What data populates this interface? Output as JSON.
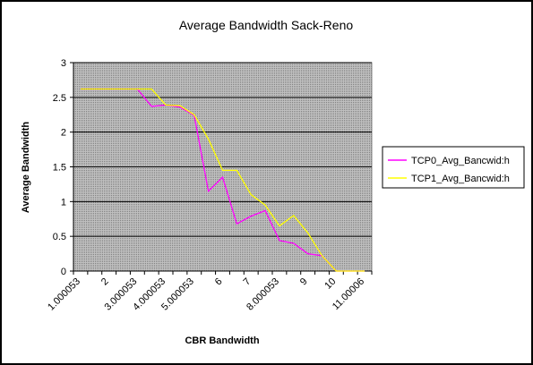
{
  "chart_data": {
    "type": "line",
    "title": "Average Bandwidth Sack-Reno",
    "xlabel": "CBR Bandwidth",
    "ylabel": "Average Bandwidth",
    "ylim": [
      0,
      3
    ],
    "yticks": [
      "0",
      "0.5",
      "1",
      "1.5",
      "2",
      "2.5",
      "3"
    ],
    "xtick_labels": [
      "1.000053",
      "2",
      "3.000053",
      "4.000053",
      "5.000053",
      "6",
      "7",
      "8.000053",
      "9",
      "10",
      "11.00006"
    ],
    "x": [
      1.0,
      1.5,
      2.0,
      2.5,
      3.0,
      3.5,
      4.0,
      4.5,
      5.0,
      5.5,
      6.0,
      6.5,
      7.0,
      7.5,
      8.0,
      8.5,
      9.0,
      9.5,
      10.0,
      10.5,
      11.0
    ],
    "series": [
      {
        "name": "TCP0_Avg_Bancwid:h",
        "color": "#ff00ff",
        "values": [
          2.62,
          2.62,
          2.62,
          2.62,
          2.62,
          2.37,
          2.39,
          2.36,
          2.24,
          1.15,
          1.35,
          0.68,
          0.79,
          0.87,
          0.44,
          0.4,
          0.25,
          0.22,
          0.0,
          0.0,
          0.0
        ]
      },
      {
        "name": "TCP1_Avg_Bancwid:h",
        "color": "#ffff00",
        "values": [
          2.62,
          2.62,
          2.62,
          2.62,
          2.62,
          2.62,
          2.39,
          2.38,
          2.25,
          1.9,
          1.45,
          1.45,
          1.1,
          0.95,
          0.65,
          0.8,
          0.55,
          0.22,
          0.0,
          0.0,
          0.0
        ]
      }
    ],
    "grid": true,
    "legend_position": "right"
  }
}
